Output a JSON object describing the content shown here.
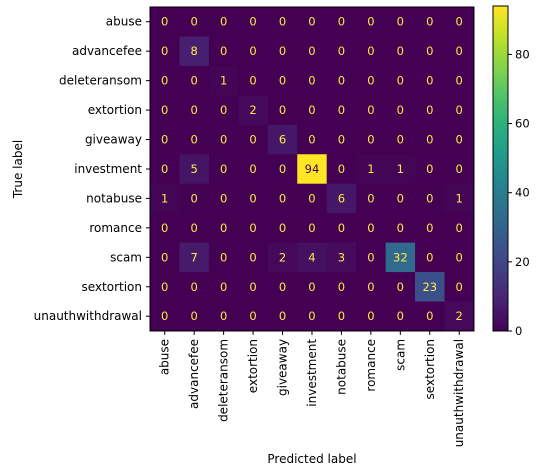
{
  "chart_data": {
    "type": "heatmap",
    "title": "",
    "xlabel": "Predicted label",
    "ylabel": "True label",
    "labels": [
      "abuse",
      "advancefee",
      "deleteransom",
      "extortion",
      "giveaway",
      "investment",
      "notabuse",
      "romance",
      "scam",
      "sextortion",
      "unauthwithdrawal"
    ],
    "matrix": [
      [
        0,
        0,
        0,
        0,
        0,
        0,
        0,
        0,
        0,
        0,
        0
      ],
      [
        0,
        8,
        0,
        0,
        0,
        0,
        0,
        0,
        0,
        0,
        0
      ],
      [
        0,
        0,
        1,
        0,
        0,
        0,
        0,
        0,
        0,
        0,
        0
      ],
      [
        0,
        0,
        0,
        2,
        0,
        0,
        0,
        0,
        0,
        0,
        0
      ],
      [
        0,
        0,
        0,
        0,
        6,
        0,
        0,
        0,
        0,
        0,
        0
      ],
      [
        0,
        5,
        0,
        0,
        0,
        94,
        0,
        1,
        1,
        0,
        0
      ],
      [
        1,
        0,
        0,
        0,
        0,
        0,
        6,
        0,
        0,
        0,
        1
      ],
      [
        0,
        0,
        0,
        0,
        0,
        0,
        0,
        0,
        0,
        0,
        0
      ],
      [
        0,
        7,
        0,
        0,
        2,
        4,
        3,
        0,
        32,
        0,
        0
      ],
      [
        0,
        0,
        0,
        0,
        0,
        0,
        0,
        0,
        0,
        23,
        0
      ],
      [
        0,
        0,
        0,
        0,
        0,
        0,
        0,
        0,
        0,
        0,
        2
      ]
    ],
    "colormap": "viridis",
    "colorbar": {
      "range": [
        0,
        94
      ],
      "ticks": [
        0,
        20,
        40,
        60,
        80
      ]
    },
    "text_color_dark": "#ffe945",
    "text_color_light": "#440154"
  }
}
